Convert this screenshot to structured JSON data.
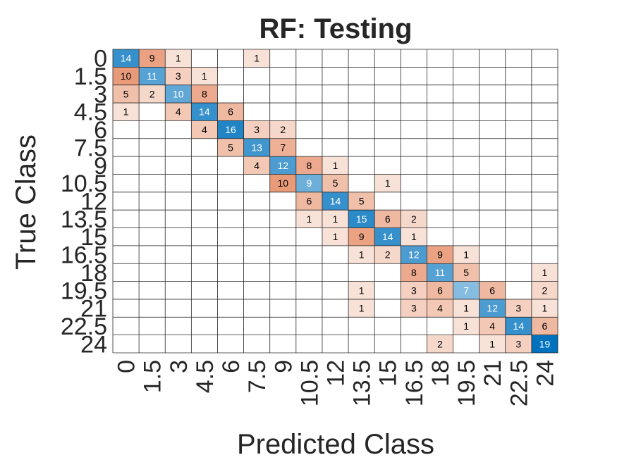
{
  "chart_data": {
    "type": "heatmap",
    "title": "RF: Testing",
    "xlabel": "Predicted Class",
    "ylabel": "True Class",
    "classes": [
      "0",
      "1.5",
      "3",
      "4.5",
      "6",
      "7.5",
      "9",
      "10.5",
      "12",
      "13.5",
      "15",
      "16.5",
      "18",
      "19.5",
      "21",
      "22.5",
      "24"
    ],
    "matrix": [
      [
        14,
        9,
        1,
        0,
        0,
        1,
        0,
        0,
        0,
        0,
        0,
        0,
        0,
        0,
        0,
        0,
        0
      ],
      [
        10,
        11,
        3,
        1,
        0,
        0,
        0,
        0,
        0,
        0,
        0,
        0,
        0,
        0,
        0,
        0,
        0
      ],
      [
        5,
        2,
        10,
        8,
        0,
        0,
        0,
        0,
        0,
        0,
        0,
        0,
        0,
        0,
        0,
        0,
        0
      ],
      [
        1,
        0,
        4,
        14,
        6,
        0,
        0,
        0,
        0,
        0,
        0,
        0,
        0,
        0,
        0,
        0,
        0
      ],
      [
        0,
        0,
        0,
        4,
        16,
        3,
        2,
        0,
        0,
        0,
        0,
        0,
        0,
        0,
        0,
        0,
        0
      ],
      [
        0,
        0,
        0,
        0,
        5,
        13,
        7,
        0,
        0,
        0,
        0,
        0,
        0,
        0,
        0,
        0,
        0
      ],
      [
        0,
        0,
        0,
        0,
        0,
        4,
        12,
        8,
        1,
        0,
        0,
        0,
        0,
        0,
        0,
        0,
        0
      ],
      [
        0,
        0,
        0,
        0,
        0,
        0,
        10,
        9,
        5,
        0,
        1,
        0,
        0,
        0,
        0,
        0,
        0
      ],
      [
        0,
        0,
        0,
        0,
        0,
        0,
        0,
        6,
        14,
        5,
        0,
        0,
        0,
        0,
        0,
        0,
        0
      ],
      [
        0,
        0,
        0,
        0,
        0,
        0,
        0,
        1,
        1,
        15,
        6,
        2,
        0,
        0,
        0,
        0,
        0
      ],
      [
        0,
        0,
        0,
        0,
        0,
        0,
        0,
        0,
        1,
        9,
        14,
        1,
        0,
        0,
        0,
        0,
        0
      ],
      [
        0,
        0,
        0,
        0,
        0,
        0,
        0,
        0,
        0,
        1,
        2,
        12,
        9,
        1,
        0,
        0,
        0
      ],
      [
        0,
        0,
        0,
        0,
        0,
        0,
        0,
        0,
        0,
        0,
        0,
        8,
        11,
        5,
        0,
        0,
        1
      ],
      [
        0,
        0,
        0,
        0,
        0,
        0,
        0,
        0,
        0,
        1,
        0,
        3,
        6,
        7,
        6,
        0,
        2
      ],
      [
        0,
        0,
        0,
        0,
        0,
        0,
        0,
        0,
        0,
        1,
        0,
        3,
        4,
        1,
        12,
        3,
        1
      ],
      [
        0,
        0,
        0,
        0,
        0,
        0,
        0,
        0,
        0,
        0,
        0,
        0,
        0,
        1,
        4,
        14,
        6
      ],
      [
        0,
        0,
        0,
        0,
        0,
        0,
        0,
        0,
        0,
        0,
        0,
        0,
        2,
        0,
        1,
        3,
        19
      ]
    ],
    "color_max": 19,
    "colors": {
      "diagonal_max": "#0072BD",
      "offdiag_max": "#D95319",
      "empty": "#FFFFFF",
      "grid": "#262626",
      "text_dark": "#000000",
      "text_light": "#FFFFFF"
    }
  }
}
